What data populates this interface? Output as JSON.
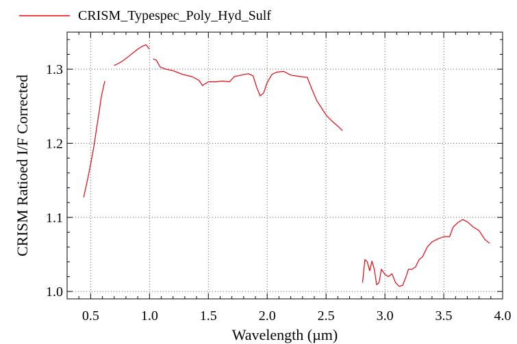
{
  "chart_data": {
    "type": "line",
    "title": "",
    "xlabel": "Wavelength (µm)",
    "ylabel": "CRISM Ratioed I/F Corrected",
    "xlim": [
      0.3,
      4.0
    ],
    "ylim": [
      0.99,
      1.35
    ],
    "x_ticks": [
      0.5,
      1.0,
      1.5,
      2.0,
      2.5,
      3.0,
      3.5,
      4.0
    ],
    "x_tick_labels": [
      "0.5",
      "1.0",
      "1.5",
      "2.0",
      "2.5",
      "3.0",
      "3.5",
      "4.0"
    ],
    "y_ticks": [
      1.0,
      1.1,
      1.2,
      1.3
    ],
    "y_tick_labels": [
      "1.0",
      "1.1",
      "1.2",
      "1.3"
    ],
    "grid": true,
    "legend": "top-left",
    "colors": {
      "series": "#e8000b",
      "grid": "#555555",
      "axis": "#000000"
    },
    "series": [
      {
        "name": "CRISM_Typespec_Poly_Hyd_Sulf",
        "segments": [
          [
            [
              0.44,
              1.127
            ],
            [
              0.47,
              1.148
            ],
            [
              0.5,
              1.172
            ],
            [
              0.53,
              1.198
            ],
            [
              0.55,
              1.22
            ],
            [
              0.57,
              1.24
            ],
            [
              0.59,
              1.262
            ],
            [
              0.62,
              1.284
            ]
          ],
          [
            [
              0.7,
              1.305
            ],
            [
              0.74,
              1.308
            ],
            [
              0.78,
              1.312
            ],
            [
              0.82,
              1.317
            ],
            [
              0.86,
              1.322
            ],
            [
              0.9,
              1.327
            ],
            [
              0.94,
              1.331
            ],
            [
              0.97,
              1.333
            ],
            [
              1.0,
              1.327
            ]
          ],
          [
            [
              1.03,
              1.314
            ],
            [
              1.06,
              1.312
            ],
            [
              1.09,
              1.303
            ],
            [
              1.14,
              1.3
            ],
            [
              1.2,
              1.298
            ],
            [
              1.28,
              1.293
            ],
            [
              1.36,
              1.29
            ],
            [
              1.42,
              1.285
            ],
            [
              1.45,
              1.278
            ],
            [
              1.5,
              1.283
            ],
            [
              1.56,
              1.283
            ],
            [
              1.62,
              1.284
            ],
            [
              1.68,
              1.283
            ],
            [
              1.72,
              1.29
            ],
            [
              1.78,
              1.292
            ],
            [
              1.84,
              1.294
            ],
            [
              1.88,
              1.291
            ],
            [
              1.91,
              1.276
            ],
            [
              1.94,
              1.264
            ],
            [
              1.97,
              1.268
            ],
            [
              2.0,
              1.282
            ],
            [
              2.04,
              1.293
            ],
            [
              2.08,
              1.296
            ],
            [
              2.14,
              1.297
            ],
            [
              2.2,
              1.292
            ],
            [
              2.28,
              1.29
            ],
            [
              2.34,
              1.289
            ],
            [
              2.38,
              1.273
            ],
            [
              2.42,
              1.258
            ],
            [
              2.46,
              1.248
            ],
            [
              2.5,
              1.238
            ],
            [
              2.55,
              1.23
            ],
            [
              2.6,
              1.223
            ],
            [
              2.64,
              1.217
            ]
          ],
          [
            [
              2.81,
              1.012
            ],
            [
              2.83,
              1.043
            ],
            [
              2.85,
              1.04
            ],
            [
              2.87,
              1.028
            ],
            [
              2.89,
              1.041
            ],
            [
              2.91,
              1.03
            ],
            [
              2.93,
              1.009
            ],
            [
              2.95,
              1.012
            ],
            [
              2.97,
              1.03
            ],
            [
              3.0,
              1.023
            ],
            [
              3.03,
              1.02
            ],
            [
              3.06,
              1.024
            ],
            [
              3.09,
              1.012
            ],
            [
              3.12,
              1.007
            ],
            [
              3.15,
              1.008
            ],
            [
              3.18,
              1.02
            ],
            [
              3.2,
              1.03
            ],
            [
              3.23,
              1.03
            ],
            [
              3.26,
              1.033
            ],
            [
              3.29,
              1.043
            ],
            [
              3.32,
              1.047
            ],
            [
              3.36,
              1.06
            ],
            [
              3.4,
              1.067
            ],
            [
              3.45,
              1.071
            ],
            [
              3.5,
              1.074
            ],
            [
              3.55,
              1.074
            ],
            [
              3.58,
              1.087
            ],
            [
              3.62,
              1.093
            ],
            [
              3.66,
              1.097
            ],
            [
              3.7,
              1.094
            ],
            [
              3.75,
              1.087
            ],
            [
              3.8,
              1.082
            ],
            [
              3.85,
              1.07
            ],
            [
              3.89,
              1.065
            ]
          ]
        ]
      }
    ]
  }
}
